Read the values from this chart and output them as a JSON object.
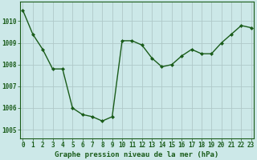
{
  "x": [
    0,
    1,
    2,
    3,
    4,
    5,
    6,
    7,
    8,
    9,
    10,
    11,
    12,
    13,
    14,
    15,
    16,
    17,
    18,
    19,
    20,
    21,
    22,
    23
  ],
  "y": [
    1010.5,
    1009.4,
    1008.7,
    1007.8,
    1007.8,
    1006.0,
    1005.7,
    1005.6,
    1005.4,
    1005.6,
    1009.1,
    1009.1,
    1008.9,
    1008.3,
    1007.9,
    1008.0,
    1008.4,
    1008.7,
    1008.5,
    1008.5,
    1009.0,
    1009.4,
    1009.8,
    1009.7
  ],
  "line_color": "#1a5c1a",
  "marker": "D",
  "marker_size": 2.0,
  "bg_color": "#cce8e8",
  "grid_color": "#b0c8c8",
  "title": "Graphe pression niveau de la mer (hPa)",
  "xlabel_ticks": [
    "0",
    "1",
    "2",
    "3",
    "4",
    "5",
    "6",
    "7",
    "8",
    "9",
    "10",
    "11",
    "12",
    "13",
    "14",
    "15",
    "16",
    "17",
    "18",
    "19",
    "20",
    "21",
    "22",
    "23"
  ],
  "ytick_vals": [
    1005,
    1006,
    1007,
    1008,
    1009,
    1010
  ],
  "ytick_labels": [
    "1005",
    "1006",
    "1007",
    "1008",
    "1009",
    "1010"
  ],
  "ylim": [
    1004.6,
    1010.9
  ],
  "xlim": [
    -0.3,
    23.3
  ],
  "tick_color": "#1a5c1a",
  "tick_fontsize": 5.5,
  "title_fontsize": 6.5,
  "line_width": 1.0
}
